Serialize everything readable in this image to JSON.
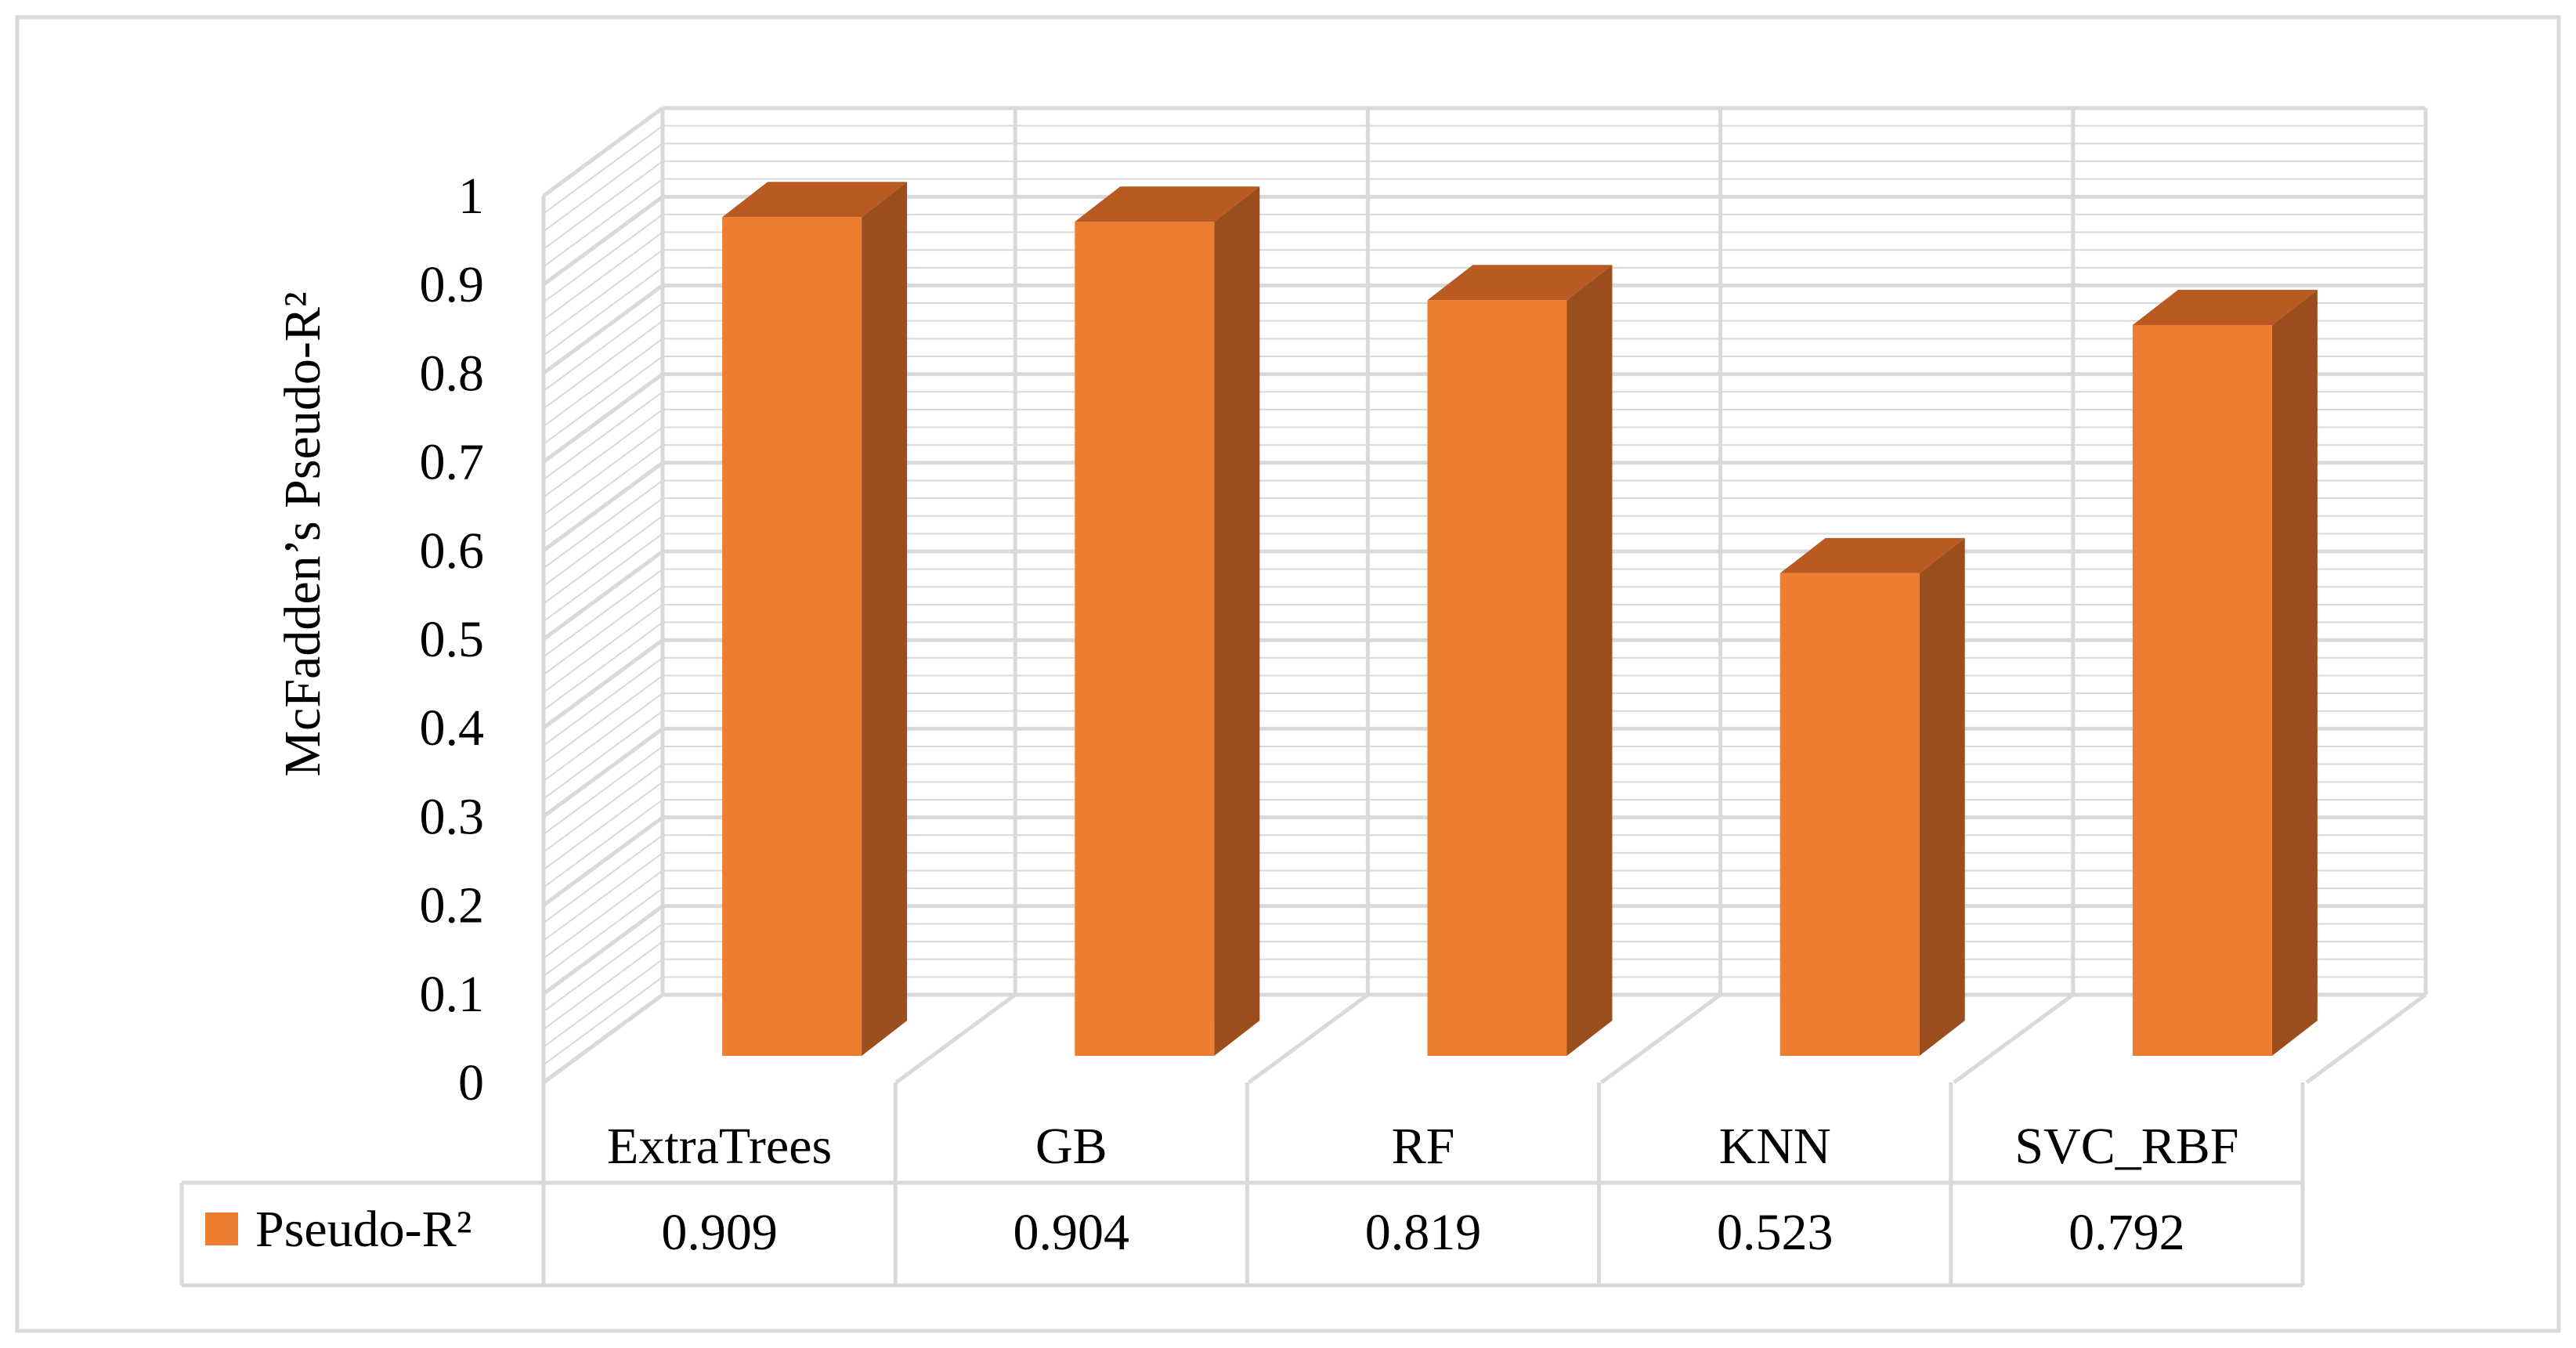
{
  "chart_data": {
    "type": "bar",
    "style": "3d-column-with-data-table",
    "categories": [
      "ExtraTrees",
      "GB",
      "RF",
      "KNN",
      "SVC_RBF"
    ],
    "series": [
      {
        "name": "Pseudo-R²",
        "values": [
          0.909,
          0.904,
          0.819,
          0.523,
          0.792
        ],
        "color": "#ED7D31"
      }
    ],
    "value_labels": [
      "0.909",
      "0.904",
      "0.819",
      "0.523",
      "0.792"
    ],
    "ylabel": "McFadden’s Pseudo-R²",
    "xlabel": "",
    "ylim": [
      0,
      1
    ],
    "yticks": [
      0,
      0.1,
      0.2,
      0.3,
      0.4,
      0.5,
      0.6,
      0.7,
      0.8,
      0.9,
      1
    ],
    "ytick_labels": [
      "0",
      "0.1",
      "0.2",
      "0.3",
      "0.4",
      "0.5",
      "0.6",
      "0.7",
      "0.8",
      "0.9",
      "1"
    ],
    "grid": true,
    "legend": {
      "placement": "data-table",
      "entries": [
        "Pseudo-R²"
      ]
    },
    "colors": {
      "bar_front": "#ED7D31",
      "bar_side": "#9B4F1E",
      "bar_top": "#B85A22",
      "grid": "#D9D9D9",
      "frame": "#D9D9D9"
    }
  }
}
